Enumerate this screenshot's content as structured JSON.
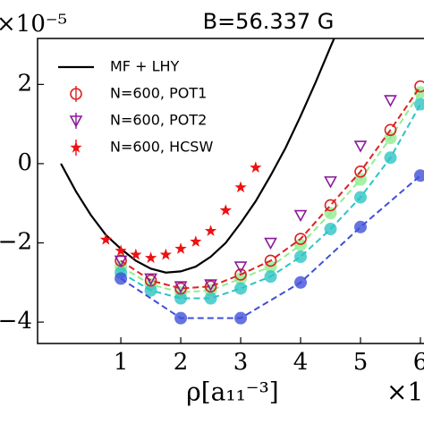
{
  "chart_data": {
    "type": "line",
    "title": "B=56.337 G",
    "xlabel": "ρ[a₁₁⁻³]",
    "x_offset_label": "×1",
    "y_offset_label": "×10⁻⁵",
    "xlim": [
      -0.39,
      6.06
    ],
    "ylim": [
      -4.54,
      3.16
    ],
    "xticks": [
      1,
      2,
      3,
      4,
      5,
      6
    ],
    "yticks": [
      {
        "value": -4,
        "label": "−4"
      },
      {
        "value": -2,
        "label": "−2"
      },
      0,
      2
    ],
    "legend": "upper left",
    "series": [
      {
        "name": "MF + LHY",
        "color": "#000000",
        "marker": "none",
        "style": "solid",
        "x": [
          0,
          0.25,
          0.5,
          0.75,
          1,
          1.25,
          1.5,
          1.75,
          2,
          2.25,
          2.5,
          2.75,
          3,
          3.25,
          3.5,
          3.75,
          4,
          4.25,
          4.5,
          4.6
        ],
        "values": [
          0,
          -0.7,
          -1.3,
          -1.8,
          -2.15,
          -2.45,
          -2.65,
          -2.75,
          -2.72,
          -2.6,
          -2.35,
          -2.0,
          -1.5,
          -0.95,
          -0.3,
          0.4,
          1.2,
          2.05,
          2.95,
          3.3
        ]
      },
      {
        "color": "#90ee90",
        "marker": "filled-circle",
        "style": "dashed",
        "x": [
          1,
          1.5,
          2,
          2.5,
          3,
          3.5,
          4,
          4.5,
          5,
          5.5,
          6
        ],
        "values": [
          -2.6,
          -3.05,
          -3.25,
          -3.2,
          -2.9,
          -2.6,
          -2.05,
          -1.25,
          -0.4,
          0.65,
          1.8
        ]
      },
      {
        "color": "#2ec4c4",
        "marker": "filled-circle",
        "style": "dashed",
        "x": [
          1,
          1.5,
          2,
          2.5,
          3,
          3.5,
          4,
          4.5,
          5,
          5.5,
          6
        ],
        "values": [
          -2.75,
          -3.2,
          -3.4,
          -3.4,
          -3.15,
          -2.85,
          -2.35,
          -1.65,
          -0.85,
          0.15,
          1.5
        ]
      },
      {
        "color": "#4050d8",
        "marker": "filled-circle",
        "style": "dashed",
        "x": [
          1,
          2,
          3,
          4,
          5,
          6
        ],
        "values": [
          -2.9,
          -3.9,
          -3.9,
          -3.0,
          -1.6,
          -0.3
        ]
      },
      {
        "name": "N=600, POT1",
        "color": "#dd2222",
        "marker": "circle",
        "style": "dashed",
        "x": [
          1,
          1.5,
          2,
          2.5,
          3,
          3.5,
          4,
          4.5,
          5,
          5.5,
          6
        ],
        "values": [
          -2.45,
          -2.95,
          -3.15,
          -3.1,
          -2.8,
          -2.45,
          -1.9,
          -1.05,
          -0.2,
          0.85,
          1.95
        ]
      },
      {
        "name": "N=600, POT2",
        "color": "#8a1a9a",
        "marker": "triangle-down",
        "style": "none",
        "x": [
          1,
          1.5,
          2,
          2.5,
          3,
          3.5,
          4,
          4.5,
          5,
          5.5
        ],
        "values": [
          -2.45,
          -2.9,
          -3.1,
          -3.05,
          -2.6,
          -2.0,
          -1.3,
          -0.45,
          0.45,
          1.6
        ]
      },
      {
        "name": "N=600, HCSW",
        "color": "#ee1111",
        "marker": "star",
        "style": "none",
        "x": [
          0.75,
          1,
          1.25,
          1.5,
          1.75,
          2,
          2.25,
          2.5,
          2.75,
          3,
          3.25
        ],
        "values": [
          -1.92,
          -2.2,
          -2.3,
          -2.38,
          -2.3,
          -2.15,
          -1.97,
          -1.7,
          -1.18,
          -0.6,
          -0.1
        ]
      }
    ]
  }
}
